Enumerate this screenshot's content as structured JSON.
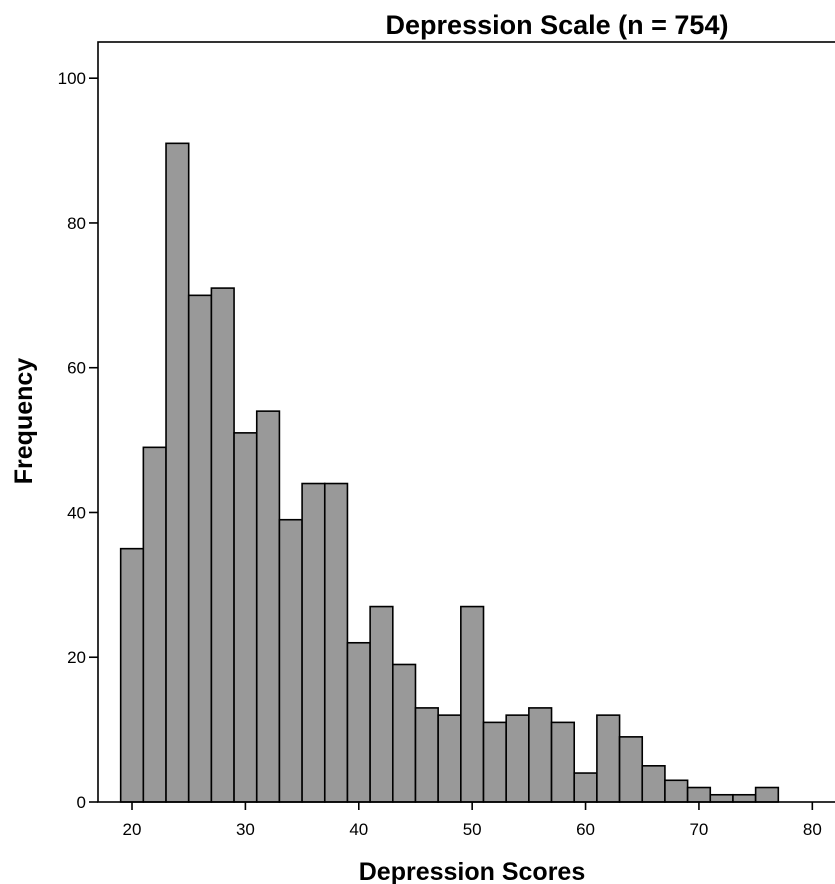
{
  "chart_data": {
    "type": "bar",
    "title": "Depression Scale (n = 754)",
    "xlabel": "Depression Scores",
    "ylabel": "Frequency",
    "xlim": [
      17,
      82
    ],
    "ylim": [
      0,
      105
    ],
    "xticks": [
      20,
      30,
      40,
      50,
      60,
      70,
      80
    ],
    "yticks": [
      0,
      20,
      40,
      60,
      80,
      100
    ],
    "bin_width": 2,
    "bins": [
      {
        "start": 19,
        "end": 21,
        "value": 35
      },
      {
        "start": 21,
        "end": 23,
        "value": 49
      },
      {
        "start": 23,
        "end": 25,
        "value": 91
      },
      {
        "start": 25,
        "end": 27,
        "value": 70
      },
      {
        "start": 27,
        "end": 29,
        "value": 71
      },
      {
        "start": 29,
        "end": 31,
        "value": 51
      },
      {
        "start": 31,
        "end": 33,
        "value": 54
      },
      {
        "start": 33,
        "end": 35,
        "value": 39
      },
      {
        "start": 35,
        "end": 37,
        "value": 44
      },
      {
        "start": 37,
        "end": 39,
        "value": 44
      },
      {
        "start": 39,
        "end": 41,
        "value": 22
      },
      {
        "start": 41,
        "end": 43,
        "value": 27
      },
      {
        "start": 43,
        "end": 45,
        "value": 19
      },
      {
        "start": 45,
        "end": 47,
        "value": 13
      },
      {
        "start": 47,
        "end": 49,
        "value": 12
      },
      {
        "start": 49,
        "end": 51,
        "value": 27
      },
      {
        "start": 51,
        "end": 53,
        "value": 11
      },
      {
        "start": 53,
        "end": 55,
        "value": 12
      },
      {
        "start": 55,
        "end": 57,
        "value": 13
      },
      {
        "start": 57,
        "end": 59,
        "value": 11
      },
      {
        "start": 59,
        "end": 61,
        "value": 4
      },
      {
        "start": 61,
        "end": 63,
        "value": 12
      },
      {
        "start": 63,
        "end": 65,
        "value": 9
      },
      {
        "start": 65,
        "end": 67,
        "value": 5
      },
      {
        "start": 67,
        "end": 69,
        "value": 3
      },
      {
        "start": 69,
        "end": 71,
        "value": 2
      },
      {
        "start": 71,
        "end": 73,
        "value": 1
      },
      {
        "start": 73,
        "end": 75,
        "value": 1
      },
      {
        "start": 75,
        "end": 77,
        "value": 2
      }
    ],
    "grid": false,
    "legend": "none",
    "bar_color": "#999999",
    "edge_color": "#000000"
  }
}
